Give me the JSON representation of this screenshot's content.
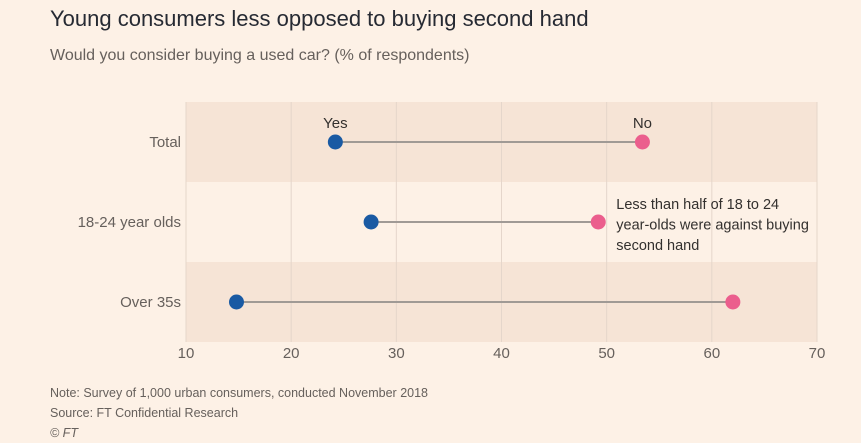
{
  "header": {
    "title": "Young consumers less opposed to buying second hand",
    "subtitle": "Would you consider buying a used car? (% of respondents)"
  },
  "footer": {
    "note": "Note: Survey of 1,000 urban consumers, conducted November 2018",
    "source": "Source: FT Confidential Research",
    "copyright": "© FT"
  },
  "chart_data": {
    "type": "dot-plot",
    "title": "Young consumers less opposed to buying second hand",
    "subtitle": "Would you consider buying a used car? (% of respondents)",
    "categories": [
      "Total",
      "18-24 year olds",
      "Over 35s"
    ],
    "series": [
      {
        "name": "Yes",
        "values": [
          24.2,
          27.6,
          14.8
        ],
        "color": "#1a5aa3"
      },
      {
        "name": "No",
        "values": [
          53.4,
          49.2,
          62.0
        ],
        "color": "#eb5e8d"
      }
    ],
    "xlim": [
      10,
      70
    ],
    "xticks": [
      10,
      20,
      30,
      40,
      50,
      60,
      70
    ],
    "grid": true,
    "legend": "labels above the first row",
    "annotation": {
      "category": "18-24 year olds",
      "lines": [
        "Less than half of 18 to 24",
        "year-olds were against buying",
        "second hand"
      ]
    },
    "colors": {
      "band": "#f6e4d6",
      "connector": "#a09a95",
      "grid": "#e5d6cb",
      "axis_text": "#66605c",
      "label_text": "#33302e"
    }
  }
}
